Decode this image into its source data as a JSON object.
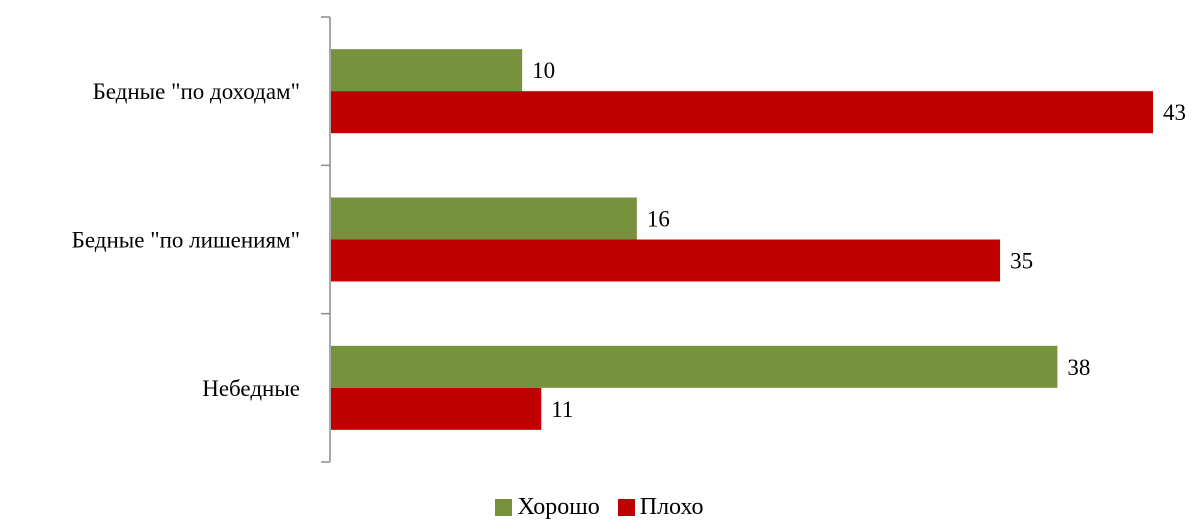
{
  "chart_data": {
    "type": "bar",
    "orientation": "horizontal",
    "categories": [
      "Бедные \"по доходам\"",
      "Бедные \"по лишениям\"",
      "Небедные"
    ],
    "series": [
      {
        "name": "Хорошо",
        "values": [
          10,
          16,
          38
        ],
        "color": "#76923c"
      },
      {
        "name": "Плохо",
        "values": [
          43,
          35,
          11
        ],
        "color": "#c00000"
      }
    ],
    "xlim": [
      0,
      43
    ],
    "grid": false,
    "legend_position": "bottom"
  }
}
